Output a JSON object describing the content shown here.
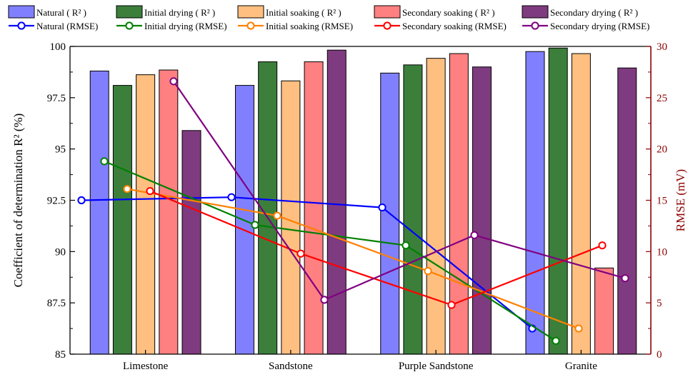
{
  "chart_data": {
    "type": "bar",
    "categories": [
      "Limestone",
      "Sandstone",
      "Purple Sandstone",
      "Granite"
    ],
    "ylabel": "Coefficient of determination  R² (%)",
    "ylabel_right": "RMSE (mV)",
    "ylim": [
      85,
      100
    ],
    "yticks": [
      "85",
      "87.5",
      "90",
      "92.5",
      "95",
      "97.5",
      "100"
    ],
    "ytick_values": [
      85,
      87.5,
      90,
      92.5,
      95,
      97.5,
      100
    ],
    "ylim_right": [
      0,
      30
    ],
    "yticks_right": [
      "0",
      "5",
      "10",
      "15",
      "20",
      "25",
      "30"
    ],
    "ytick_right_values": [
      0,
      5,
      10,
      15,
      20,
      25,
      30
    ],
    "grid": false,
    "legend_placement": "top",
    "bar_series": [
      {
        "name": "Natural ( R² )",
        "values": [
          98.8,
          98.1,
          98.7,
          99.75
        ],
        "color": "#8080ff"
      },
      {
        "name": "Initial drying ( R² )",
        "values": [
          98.1,
          99.25,
          99.1,
          99.92
        ],
        "color": "#3b7f3b"
      },
      {
        "name": "Initial soaking ( R² )",
        "values": [
          98.62,
          98.32,
          99.42,
          99.65
        ],
        "color": "#ffbf80"
      },
      {
        "name": "Secondary soaking ( R² )",
        "values": [
          98.85,
          99.25,
          99.65,
          89.2
        ],
        "color": "#ff8080"
      },
      {
        "name": "Secondary drying ( R² )",
        "values": [
          95.9,
          99.82,
          99.0,
          98.95
        ],
        "color": "#7f3b7f"
      }
    ],
    "line_series": [
      {
        "name": "Natural (RMSE)",
        "values": [
          15.0,
          15.3,
          14.3,
          2.5
        ],
        "color": "#0000ff"
      },
      {
        "name": "Initial drying (RMSE)",
        "values": [
          18.8,
          12.6,
          10.6,
          1.3
        ],
        "color": "#008000"
      },
      {
        "name": "Initial soaking (RMSE)",
        "values": [
          16.1,
          13.5,
          8.1,
          2.5
        ],
        "color": "#ff8000"
      },
      {
        "name": "Secondary soaking (RMSE)",
        "values": [
          15.9,
          9.8,
          4.8,
          10.6
        ],
        "color": "#ff0000"
      },
      {
        "name": "Secondary drying (RMSE)",
        "values": [
          26.6,
          5.3,
          11.6,
          7.4
        ],
        "color": "#800080"
      }
    ],
    "right_axis_color": "#8b0000"
  }
}
